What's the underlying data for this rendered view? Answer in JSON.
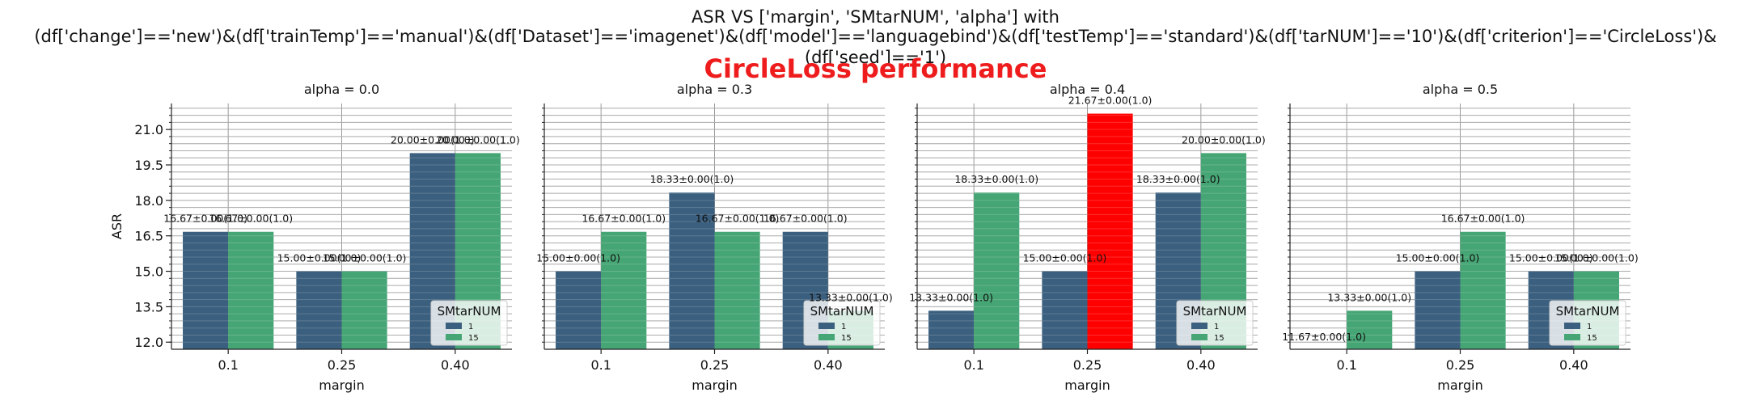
{
  "title_line1": "ASR VS ['margin', 'SMtarNUM', 'alpha'] with",
  "title_line2": "(df['change']=='new')&(df['trainTemp']=='manual')&(df['Dataset']=='imagenet')&(df['model']=='languagebind')&(df['testTemp']=='standard')&(df['tarNUM']=='10')&(df['criterion']=='CircleLoss')&(df['seed']=='1')",
  "title_line3": "CircleLoss performance",
  "colors": {
    "series_1": "#3b5f7e",
    "series_15": "#45a574",
    "highlight": "#ff0000",
    "title_red": "#ee1c1c"
  },
  "chart_data": [
    {
      "type": "bar",
      "title": "alpha = 0.0",
      "xlabel": "margin",
      "ylabel": "ASR",
      "categories": [
        "0.1",
        "0.25",
        "0.40"
      ],
      "ylim": [
        11.7,
        22.1
      ],
      "yticks": [
        "12.0",
        "13.5",
        "15.0",
        "16.5",
        "18.0",
        "19.5",
        "21.0"
      ],
      "grid": true,
      "legend": {
        "title": "SMtarNUM",
        "entries": [
          "1",
          "15"
        ],
        "placement": "lower-right"
      },
      "series": [
        {
          "name": "1",
          "values": [
            16.67,
            15.0,
            20.0
          ],
          "labels": [
            "16.67±0.00(1.0)",
            "15.00±0.00(1.0)",
            "20.00±0.00(1.0)"
          ]
        },
        {
          "name": "15",
          "values": [
            16.67,
            15.0,
            20.0
          ],
          "labels": [
            "16.67±0.00(1.0)",
            "15.00±0.00(1.0)",
            "20.00±0.00(1.0)"
          ]
        }
      ]
    },
    {
      "type": "bar",
      "title": "alpha = 0.3",
      "xlabel": "margin",
      "ylabel": "",
      "categories": [
        "0.1",
        "0.25",
        "0.40"
      ],
      "ylim": [
        11.7,
        22.1
      ],
      "grid": true,
      "legend": {
        "title": "SMtarNUM",
        "entries": [
          "1",
          "15"
        ],
        "placement": "lower-right"
      },
      "series": [
        {
          "name": "1",
          "values": [
            15.0,
            18.33,
            16.67
          ],
          "labels": [
            "15.00±0.00(1.0)",
            "18.33±0.00(1.0)",
            "16.67±0.00(1.0)"
          ]
        },
        {
          "name": "15",
          "values": [
            16.67,
            16.67,
            13.33
          ],
          "labels": [
            "16.67±0.00(1.0)",
            "16.67±0.00(1.0)",
            "13.33±0.00(1.0)"
          ]
        }
      ]
    },
    {
      "type": "bar",
      "title": "alpha = 0.4",
      "xlabel": "margin",
      "ylabel": "",
      "categories": [
        "0.1",
        "0.25",
        "0.40"
      ],
      "ylim": [
        11.7,
        22.1
      ],
      "grid": true,
      "legend": {
        "title": "SMtarNUM",
        "entries": [
          "1",
          "15"
        ],
        "placement": "lower-right"
      },
      "highlight": {
        "series": "15",
        "category": "0.25"
      },
      "series": [
        {
          "name": "1",
          "values": [
            13.33,
            15.0,
            18.33
          ],
          "labels": [
            "13.33±0.00(1.0)",
            "15.00±0.00(1.0)",
            "18.33±0.00(1.0)"
          ]
        },
        {
          "name": "15",
          "values": [
            18.33,
            21.67,
            20.0
          ],
          "labels": [
            "18.33±0.00(1.0)",
            "21.67±0.00(1.0)",
            "20.00±0.00(1.0)"
          ]
        }
      ]
    },
    {
      "type": "bar",
      "title": "alpha = 0.5",
      "xlabel": "margin",
      "ylabel": "",
      "categories": [
        "0.1",
        "0.25",
        "0.40"
      ],
      "ylim": [
        11.7,
        22.1
      ],
      "grid": true,
      "legend": {
        "title": "SMtarNUM",
        "entries": [
          "1",
          "15"
        ],
        "placement": "lower-right"
      },
      "series": [
        {
          "name": "1",
          "values": [
            11.67,
            15.0,
            15.0
          ],
          "labels": [
            "11.67±0.00(1.0)",
            "15.00±0.00(1.0)",
            "15.00±0.00(1.0)"
          ]
        },
        {
          "name": "15",
          "values": [
            13.33,
            16.67,
            15.0
          ],
          "labels": [
            "13.33±0.00(1.0)",
            "16.67±0.00(1.0)",
            "15.00±0.00(1.0)"
          ]
        }
      ]
    }
  ]
}
